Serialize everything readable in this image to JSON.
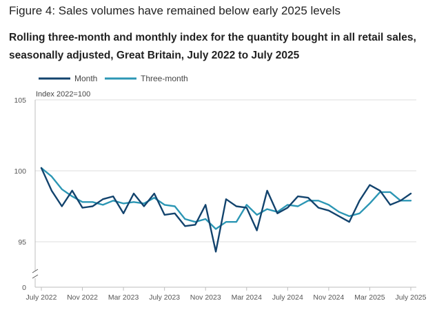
{
  "header": {
    "title": "Figure 4: Sales volumes have remained below early 2025 levels",
    "subtitle": "Rolling three-month and monthly index for the quantity bought in all retail sales, seasonally adjusted, Great Britain, July 2022 to July 2025"
  },
  "chart_data": {
    "type": "line",
    "ylabel": "Index 2022=100",
    "ylim": [
      94,
      105
    ],
    "yticks": [
      105,
      100,
      95
    ],
    "ybase_label": "0",
    "axis_break": true,
    "grid": true,
    "legend_position": "top-left",
    "x": [
      "Jul 2022",
      "Aug 2022",
      "Sep 2022",
      "Oct 2022",
      "Nov 2022",
      "Dec 2022",
      "Jan 2023",
      "Feb 2023",
      "Mar 2023",
      "Apr 2023",
      "May 2023",
      "Jun 2023",
      "Jul 2023",
      "Aug 2023",
      "Sep 2023",
      "Oct 2023",
      "Nov 2023",
      "Dec 2023",
      "Jan 2024",
      "Feb 2024",
      "Mar 2024",
      "Apr 2024",
      "May 2024",
      "Jun 2024",
      "Jul 2024",
      "Aug 2024",
      "Sep 2024",
      "Oct 2024",
      "Nov 2024",
      "Dec 2024",
      "Jan 2025",
      "Feb 2025",
      "Mar 2025",
      "Apr 2025",
      "May 2025",
      "Jun 2025",
      "Jul 2025"
    ],
    "xtick_labels": [
      "July 2022",
      "Nov 2022",
      "Mar 2023",
      "July 2023",
      "Nov 2023",
      "Mar 2024",
      "July 2024",
      "Nov 2024",
      "Mar 2025",
      "July 2025"
    ],
    "series": [
      {
        "name": "Month",
        "color": "#12436d",
        "values": [
          100.2,
          98.6,
          97.5,
          98.6,
          97.4,
          97.5,
          98.0,
          98.2,
          97.0,
          98.4,
          97.5,
          98.4,
          96.9,
          97.0,
          96.1,
          96.2,
          97.6,
          94.3,
          98.0,
          97.5,
          97.4,
          95.8,
          98.6,
          97.0,
          97.4,
          98.2,
          98.1,
          97.4,
          97.2,
          96.8,
          96.4,
          97.9,
          99.0,
          98.6,
          97.6,
          97.9,
          98.4
        ]
      },
      {
        "name": "Three-month",
        "color": "#2b96b4",
        "values": [
          100.2,
          99.6,
          98.7,
          98.2,
          97.8,
          97.8,
          97.6,
          97.9,
          97.7,
          97.8,
          97.7,
          98.1,
          97.6,
          97.5,
          96.6,
          96.4,
          96.6,
          95.9,
          96.4,
          96.4,
          97.6,
          96.9,
          97.3,
          97.1,
          97.6,
          97.5,
          97.9,
          97.9,
          97.6,
          97.1,
          96.8,
          97.0,
          97.7,
          98.5,
          98.5,
          97.9,
          97.9
        ]
      }
    ]
  }
}
